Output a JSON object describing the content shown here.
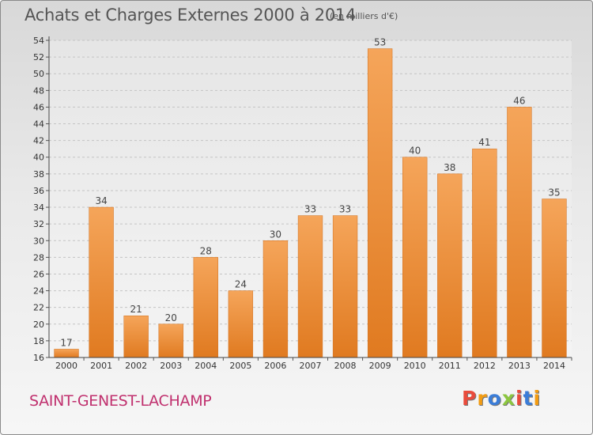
{
  "header": {
    "title": "Achats et Charges Externes 2000 à 2014",
    "unit_note": "(en milliers d'€)"
  },
  "footer": {
    "commune": "SAINT-GENEST-LACHAMP",
    "logo_text": "Proxiti",
    "logo_colors": [
      "#e94b3c",
      "#f39c12",
      "#3b7dd8",
      "#8cc63f",
      "#e94b3c",
      "#3b7dd8",
      "#f39c12"
    ]
  },
  "chart_data": {
    "type": "bar",
    "title": "Achats et Charges Externes 2000 à 2014",
    "subtitle": "(en milliers d'€)",
    "categories": [
      "2000",
      "2001",
      "2002",
      "2003",
      "2004",
      "2005",
      "2006",
      "2007",
      "2008",
      "2009",
      "2010",
      "2011",
      "2012",
      "2013",
      "2014"
    ],
    "values": [
      17,
      34,
      21,
      20,
      28,
      24,
      30,
      33,
      33,
      53,
      40,
      38,
      41,
      46,
      35
    ],
    "ylim": [
      16,
      54
    ],
    "yticks": [
      16,
      18,
      20,
      22,
      24,
      26,
      28,
      30,
      32,
      34,
      36,
      38,
      40,
      42,
      44,
      46,
      48,
      50,
      52,
      54
    ],
    "grid": true,
    "bar_color_top": "#f5a55a",
    "bar_color_bottom": "#e07a20"
  }
}
